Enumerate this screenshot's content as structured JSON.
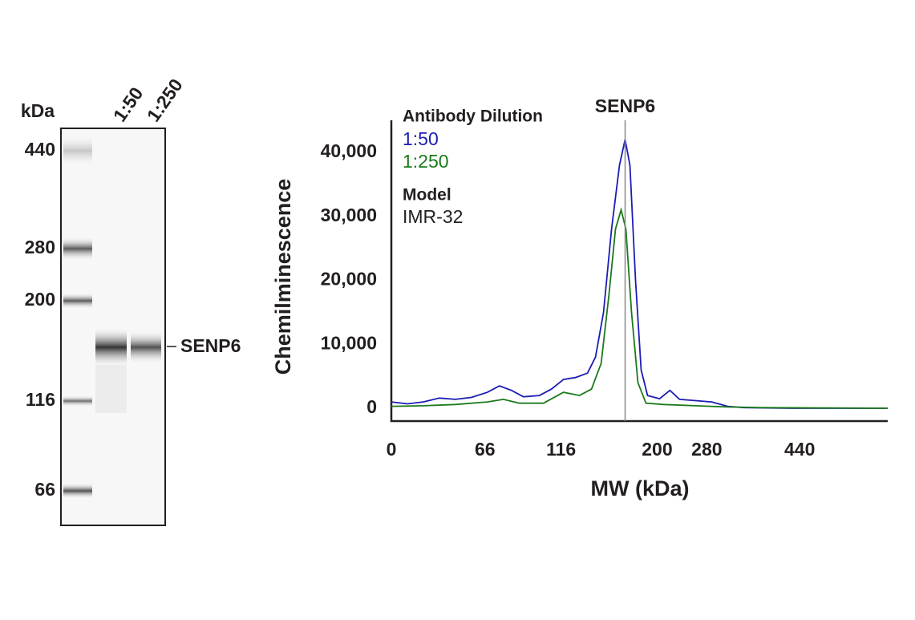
{
  "blot": {
    "unit_label": "kDa",
    "markers": [
      440,
      280,
      200,
      116,
      66
    ],
    "lanes": [
      "1:50",
      "1:250"
    ],
    "target": "SENP6"
  },
  "chart_data": {
    "type": "line",
    "ylabel": "Chemilminescence",
    "xlabel": "MW (kDa)",
    "annotation": {
      "label": "SENP6",
      "x": 292
    },
    "legend": {
      "title": "Antibody Dilution",
      "model_title": "Model",
      "model": "IMR-32",
      "position": "upper-left"
    },
    "xlim": [
      0,
      620
    ],
    "xticks": [
      0,
      {
        "value": 117,
        "label": "66"
      },
      {
        "value": 212,
        "label": "116"
      },
      {
        "value": 332,
        "label": "200"
      },
      {
        "value": 394,
        "label": "280"
      },
      {
        "value": 510,
        "label": "440"
      }
    ],
    "ylim": [
      -2000,
      45000
    ],
    "yticks": [
      0,
      {
        "value": 10000,
        "label": "10,000"
      },
      {
        "value": 20000,
        "label": "20,000"
      },
      {
        "value": 30000,
        "label": "30,000"
      },
      {
        "value": 40000,
        "label": "40,000"
      }
    ],
    "series": [
      {
        "name": "1:50",
        "color": "#1c1cb4",
        "x": [
          0,
          20,
          40,
          60,
          80,
          100,
          120,
          135,
          150,
          165,
          185,
          200,
          215,
          230,
          245,
          255,
          265,
          275,
          285,
          292,
          298,
          305,
          312,
          320,
          335,
          348,
          360,
          380,
          400,
          420,
          440,
          500,
          560,
          620
        ],
        "values": [
          1000,
          700,
          1000,
          1600,
          1400,
          1700,
          2500,
          3500,
          2800,
          1800,
          2000,
          3000,
          4500,
          4800,
          5500,
          8000,
          15000,
          28000,
          38000,
          42000,
          38000,
          20000,
          6000,
          2000,
          1500,
          2800,
          1400,
          1200,
          1000,
          300,
          100,
          0,
          0,
          0
        ]
      },
      {
        "name": "1:250",
        "color": "#1a7a1a",
        "x": [
          0,
          40,
          80,
          120,
          140,
          160,
          190,
          215,
          235,
          250,
          262,
          272,
          280,
          287,
          293,
          300,
          308,
          318,
          340,
          380,
          420,
          460,
          620
        ],
        "values": [
          300,
          400,
          600,
          1000,
          1400,
          800,
          800,
          2500,
          2000,
          3000,
          7000,
          18000,
          28000,
          31000,
          28000,
          15000,
          4000,
          800,
          600,
          400,
          200,
          100,
          0
        ]
      }
    ]
  }
}
